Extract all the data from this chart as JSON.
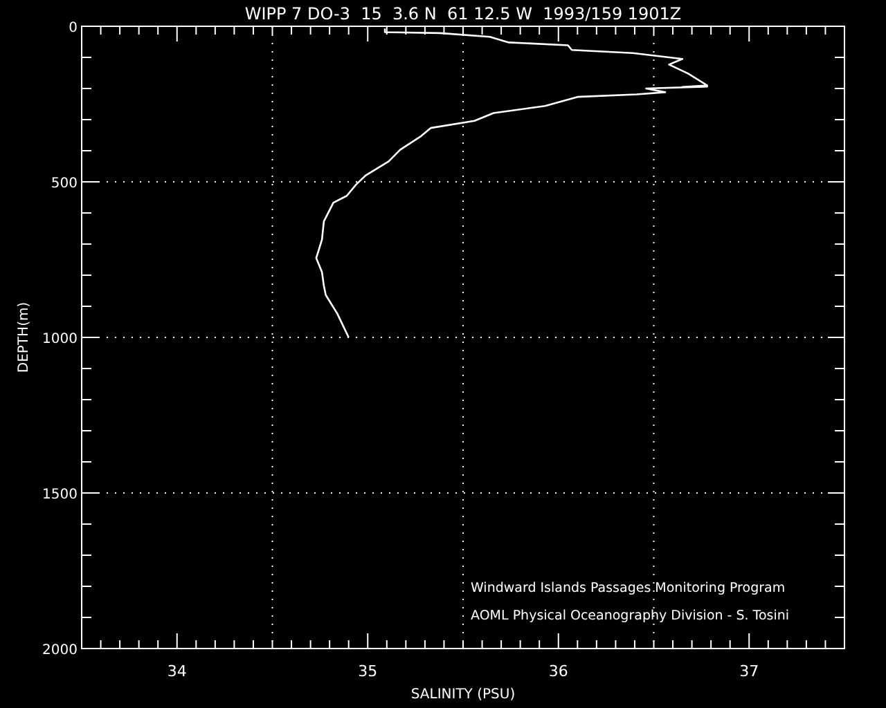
{
  "chart_data": {
    "type": "line",
    "title": "WIPP 7 DO-3  15  3.6 N  61 12.5 W  1993/159 1901Z",
    "xlabel": "SALINITY (PSU)",
    "ylabel": "DEPTH(m)",
    "annotations": [
      "Windward Islands Passages Monitoring Program",
      "AOML Physical Oceanography Division - S. Tosini"
    ],
    "series": [
      {
        "color": "#ffffff",
        "x": [
          35.09,
          35.09,
          35.38,
          35.64,
          35.74,
          36.05,
          36.07,
          36.39,
          36.65,
          36.58,
          36.68,
          36.78,
          36.65,
          36.78,
          36.46,
          36.56,
          36.41,
          36.1,
          35.93,
          35.66,
          35.56,
          35.33,
          35.28,
          35.17,
          35.11,
          34.99,
          34.94,
          34.89,
          34.82,
          34.77,
          34.76,
          34.73,
          34.76,
          34.77,
          34.78,
          34.84,
          34.9
        ],
        "values": [
          7,
          19,
          22,
          34,
          52,
          61,
          76,
          86,
          105,
          123,
          152,
          190,
          195,
          194,
          200,
          212,
          219,
          227,
          256,
          279,
          304,
          327,
          353,
          397,
          434,
          479,
          508,
          545,
          567,
          627,
          686,
          745,
          790,
          834,
          864,
          923,
          1000
        ]
      }
    ],
    "xlim": [
      33.5,
      37.5
    ],
    "ylim": [
      2000,
      0
    ],
    "xticks": [
      {
        "value": 33.6,
        "label": null
      },
      {
        "value": 33.7,
        "label": null
      },
      {
        "value": 33.8,
        "label": null
      },
      {
        "value": 33.9,
        "label": null
      },
      34,
      {
        "value": 34.1,
        "label": null
      },
      {
        "value": 34.2,
        "label": null
      },
      {
        "value": 34.3,
        "label": null
      },
      {
        "value": 34.4,
        "label": null
      },
      {
        "value": 34.5,
        "label": null
      },
      {
        "value": 34.6,
        "label": null
      },
      {
        "value": 34.7,
        "label": null
      },
      {
        "value": 34.8,
        "label": null
      },
      {
        "value": 34.9,
        "label": null
      },
      35,
      {
        "value": 35.1,
        "label": null
      },
      {
        "value": 35.2,
        "label": null
      },
      {
        "value": 35.3,
        "label": null
      },
      {
        "value": 35.4,
        "label": null
      },
      {
        "value": 35.5,
        "label": null
      },
      {
        "value": 35.6,
        "label": null
      },
      {
        "value": 35.7,
        "label": null
      },
      {
        "value": 35.8,
        "label": null
      },
      {
        "value": 35.9,
        "label": null
      },
      36,
      {
        "value": 36.1,
        "label": null
      },
      {
        "value": 36.2,
        "label": null
      },
      {
        "value": 36.3,
        "label": null
      },
      {
        "value": 36.4,
        "label": null
      },
      {
        "value": 36.5,
        "label": null
      },
      {
        "value": 36.6,
        "label": null
      },
      {
        "value": 36.7,
        "label": null
      },
      {
        "value": 36.8,
        "label": null
      },
      {
        "value": 36.9,
        "label": null
      },
      37,
      {
        "value": 37.1,
        "label": null
      },
      {
        "value": 37.2,
        "label": null
      },
      {
        "value": 37.3,
        "label": null
      },
      {
        "value": 37.4,
        "label": null
      }
    ],
    "yticks": [
      0,
      {
        "value": 100,
        "label": null
      },
      {
        "value": 200,
        "label": null
      },
      {
        "value": 300,
        "label": null
      },
      {
        "value": 400,
        "label": null
      },
      500,
      {
        "value": 600,
        "label": null
      },
      {
        "value": 700,
        "label": null
      },
      {
        "value": 800,
        "label": null
      },
      {
        "value": 900,
        "label": null
      },
      1000,
      {
        "value": 1100,
        "label": null
      },
      {
        "value": 1200,
        "label": null
      },
      {
        "value": 1300,
        "label": null
      },
      {
        "value": 1400,
        "label": null
      },
      1500,
      {
        "value": 1600,
        "label": null
      },
      {
        "value": 1700,
        "label": null
      },
      {
        "value": 1800,
        "label": null
      },
      {
        "value": 1900,
        "label": null
      },
      2000
    ],
    "ref_lines": [
      {
        "axis": "x",
        "value": 34.5,
        "line_style": "dotted",
        "color": "#ffffff"
      },
      {
        "axis": "x",
        "value": 35.5,
        "line_style": "dotted",
        "color": "#ffffff"
      },
      {
        "axis": "x",
        "value": 36.5,
        "line_style": "dotted",
        "color": "#ffffff"
      },
      {
        "axis": "y",
        "value": 500,
        "line_style": "dotted",
        "color": "#ffffff"
      },
      {
        "axis": "y",
        "value": 1000,
        "line_style": "dotted",
        "color": "#ffffff"
      },
      {
        "axis": "y",
        "value": 1500,
        "line_style": "dotted",
        "color": "#ffffff"
      }
    ],
    "grid": false,
    "marker": "none",
    "line_style": "solid"
  }
}
